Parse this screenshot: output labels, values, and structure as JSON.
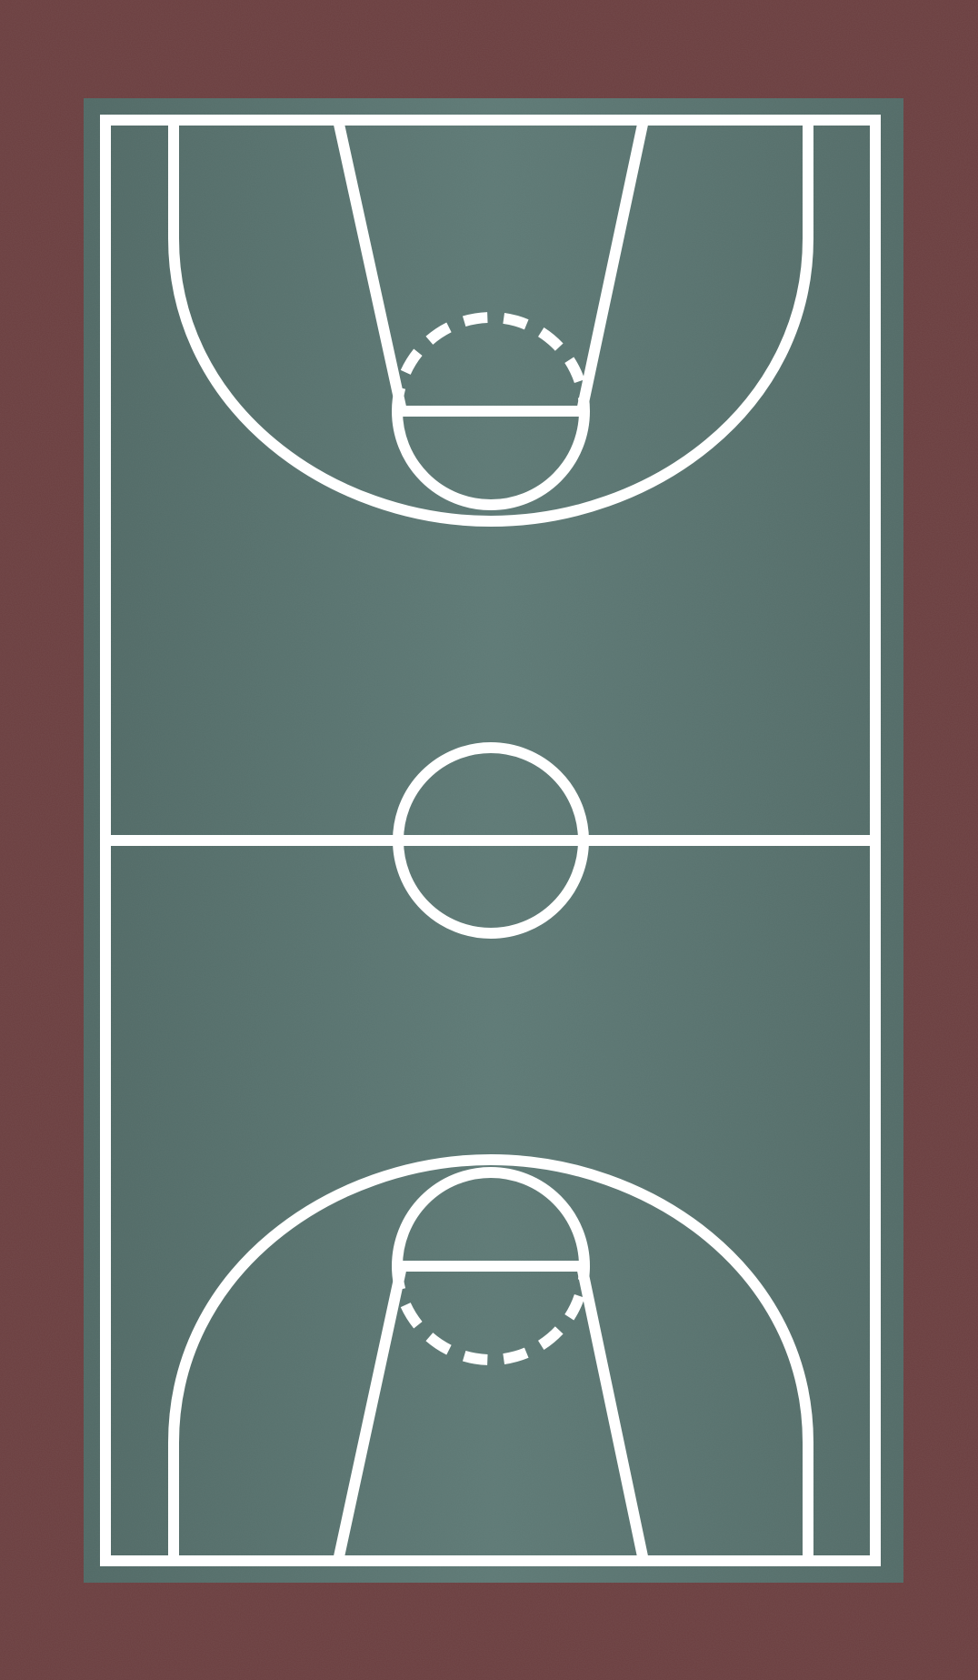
{
  "scene": {
    "subject": "basketball-court-top-view",
    "colors": {
      "surround": "#6b3e3f",
      "surround_dark": "#5c3334",
      "court": "#56706c",
      "court_light": "#62807b",
      "lines": "#ffffff"
    },
    "features": [
      "sideline-left",
      "sideline-right",
      "baseline-top",
      "baseline-bottom",
      "half-court-line",
      "center-circle",
      "three-point-arc-top",
      "three-point-arc-bottom",
      "free-throw-lane-top",
      "free-throw-lane-bottom",
      "free-throw-circle-top",
      "free-throw-circle-bottom"
    ]
  }
}
